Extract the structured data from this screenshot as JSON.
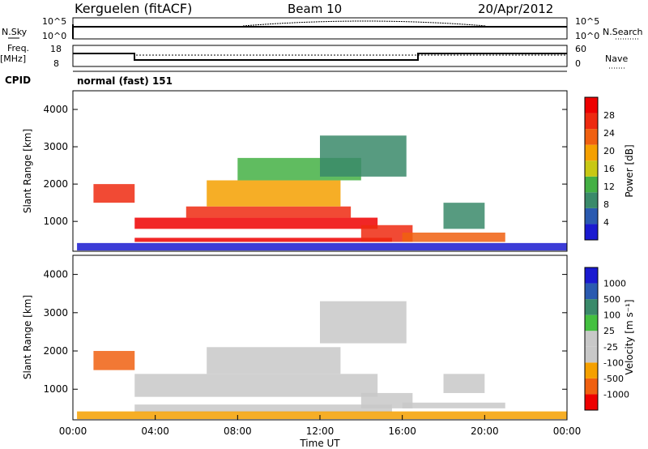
{
  "header": {
    "station": "Kerguelen (fitACF)",
    "beam": "Beam 10",
    "date": "20/Apr/2012"
  },
  "summary": {
    "nsky_label": "N.Sky",
    "nsky_ticks": [
      "10^5",
      "10^0"
    ],
    "nsearch_label": "N.Search",
    "nsearch_ticks": [
      "10^5",
      "10^0"
    ],
    "freq_label": "Freq.",
    "freq_unit": "[MHz]",
    "freq_ticks": [
      "18",
      "8"
    ],
    "nave_label": "Nave",
    "nave_ticks": [
      "60",
      "0"
    ],
    "cpid_label": "CPID",
    "cpid_value": "normal (fast) 151"
  },
  "colors": {
    "power": [
      "#1a1ad0",
      "#2a5ab0",
      "#3a8a6a",
      "#44b044",
      "#c8c814",
      "#f5a000",
      "#f06010",
      "#ee2a10",
      "#ee0000"
    ],
    "velocity": [
      "#ee0000",
      "#f06010",
      "#f5a000",
      "#c8c8c8",
      "#c8c8c8",
      "#44c040",
      "#3a8a6a",
      "#2a5ab0",
      "#1a1ad0"
    ]
  },
  "chart_data": [
    {
      "type": "heatmap",
      "name": "power",
      "ylabel": "Slant Range [km]",
      "yticks": [
        "1000",
        "2000",
        "3000",
        "4000"
      ],
      "ylim": [
        200,
        4500
      ],
      "xlim": [
        0,
        24
      ],
      "colorbar_label": "Power [dB]",
      "colorbar_ticks": [
        "4",
        "8",
        "12",
        "16",
        "20",
        "24",
        "28"
      ],
      "bands": [
        {
          "t0": 0.2,
          "t1": 24,
          "r0": 220,
          "r1": 420,
          "level": 0
        },
        {
          "t0": 3.0,
          "t1": 15.5,
          "r0": 450,
          "r1": 560,
          "level": 8
        },
        {
          "t0": 3.0,
          "t1": 14.8,
          "r0": 800,
          "r1": 1100,
          "level": 8
        },
        {
          "t0": 5.5,
          "t1": 13.5,
          "r0": 1100,
          "r1": 1400,
          "level": 7
        },
        {
          "t0": 1.0,
          "t1": 3.0,
          "r0": 1500,
          "r1": 2000,
          "level": 7
        },
        {
          "t0": 6.5,
          "t1": 13.0,
          "r0": 1400,
          "r1": 2100,
          "level": 5
        },
        {
          "t0": 8.0,
          "t1": 14.0,
          "r0": 2100,
          "r1": 2700,
          "level": 3
        },
        {
          "t0": 14.0,
          "t1": 16.5,
          "r0": 450,
          "r1": 900,
          "level": 7
        },
        {
          "t0": 16.0,
          "t1": 21.0,
          "r0": 450,
          "r1": 700,
          "level": 6
        },
        {
          "t0": 12.0,
          "t1": 16.2,
          "r0": 2200,
          "r1": 3300,
          "level": 2
        },
        {
          "t0": 18.0,
          "t1": 20.0,
          "r0": 800,
          "r1": 1500,
          "level": 2
        }
      ]
    },
    {
      "type": "heatmap",
      "name": "velocity",
      "ylabel": "Slant Range [km]",
      "xlabel": "Time UT",
      "xticks": [
        "00:00",
        "04:00",
        "08:00",
        "12:00",
        "16:00",
        "20:00",
        "00:00"
      ],
      "yticks": [
        "1000",
        "2000",
        "3000",
        "4000"
      ],
      "ylim": [
        200,
        4500
      ],
      "xlim": [
        0,
        24
      ],
      "colorbar_label": "Velocity [m s⁻¹]",
      "colorbar_ticks": [
        "-1000",
        "-500",
        "-100",
        "-25",
        "25",
        "100",
        "500",
        "1000"
      ],
      "bands": [
        {
          "t0": 3.0,
          "t1": 15.5,
          "r0": 400,
          "r1": 600,
          "level": 4
        },
        {
          "t0": 3.0,
          "t1": 14.8,
          "r0": 800,
          "r1": 1400,
          "level": 4
        },
        {
          "t0": 6.5,
          "t1": 13.0,
          "r0": 1400,
          "r1": 2100,
          "level": 4
        },
        {
          "t0": 1.0,
          "t1": 3.0,
          "r0": 1500,
          "r1": 2000,
          "level": 1
        },
        {
          "t0": 14.0,
          "t1": 16.5,
          "r0": 500,
          "r1": 900,
          "level": 4
        },
        {
          "t0": 16.0,
          "t1": 21.0,
          "r0": 500,
          "r1": 650,
          "level": 4
        },
        {
          "t0": 0.2,
          "t1": 24,
          "r0": 220,
          "r1": 420,
          "level": 2
        },
        {
          "t0": 12.0,
          "t1": 16.2,
          "r0": 2200,
          "r1": 3300,
          "level": 4
        },
        {
          "t0": 18.0,
          "t1": 20.0,
          "r0": 900,
          "r1": 1400,
          "level": 4
        }
      ]
    }
  ]
}
